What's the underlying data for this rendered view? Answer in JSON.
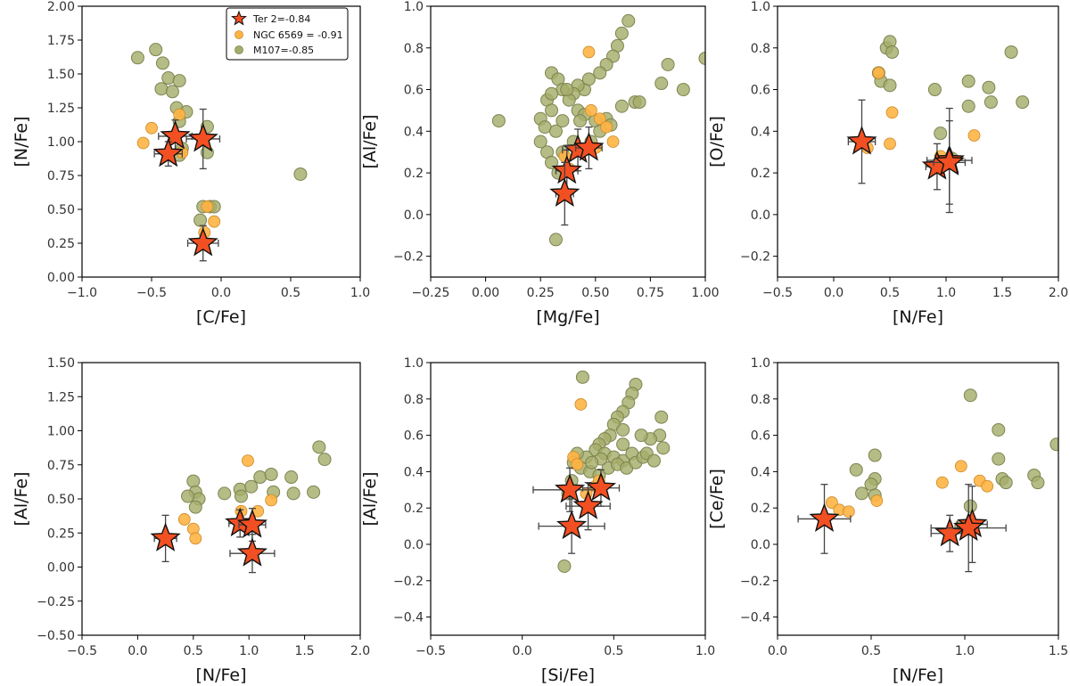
{
  "legend": {
    "ter2": "Ter 2=-0.84",
    "ngc6569": "NGC 6569 = -0.91",
    "m107": "M107=-0.85"
  },
  "colors": {
    "ter2_fill": "#f25022",
    "ter2_edge": "#111111",
    "ngc6569_fill": "#ffb444",
    "ngc6569_edge": "#c98a2a",
    "m107_fill": "#a6ad6a",
    "m107_edge": "#7d8450",
    "errorbar": "#444444"
  },
  "chart_data": [
    {
      "type": "scatter",
      "xlabel": "[C/Fe]",
      "ylabel": "[N/Fe]",
      "xlim": [
        -1.0,
        1.0
      ],
      "ylim": [
        0.0,
        2.0
      ],
      "xticks": [
        "−1.0",
        "−0.5",
        "0.0",
        "0.5",
        "1.0"
      ],
      "xtick_values": [
        -1.0,
        -0.5,
        0.0,
        0.5,
        1.0
      ],
      "yticks": [
        "0.00",
        "0.25",
        "0.50",
        "0.75",
        "1.00",
        "1.25",
        "1.50",
        "1.75",
        "2.00"
      ],
      "ytick_values": [
        0,
        0.25,
        0.5,
        0.75,
        1.0,
        1.25,
        1.5,
        1.75,
        2.0
      ],
      "legend": true,
      "m107": [
        [
          -0.6,
          1.62
        ],
        [
          -0.47,
          1.68
        ],
        [
          -0.42,
          1.58
        ],
        [
          -0.38,
          1.47
        ],
        [
          -0.3,
          1.45
        ],
        [
          -0.43,
          1.39
        ],
        [
          -0.35,
          1.37
        ],
        [
          -0.32,
          1.25
        ],
        [
          -0.25,
          1.22
        ],
        [
          -0.3,
          1.15
        ],
        [
          -0.1,
          1.11
        ],
        [
          -0.28,
          0.95
        ],
        [
          -0.3,
          0.9
        ],
        [
          -0.1,
          0.92
        ],
        [
          -0.15,
          0.42
        ],
        [
          -0.13,
          0.52
        ],
        [
          -0.08,
          0.52
        ],
        [
          -0.05,
          0.52
        ],
        [
          0.57,
          0.76
        ]
      ],
      "ngc6569": [
        [
          -0.56,
          0.99
        ],
        [
          -0.5,
          1.1
        ],
        [
          -0.3,
          1.2
        ],
        [
          -0.28,
          0.92
        ],
        [
          -0.12,
          0.33
        ],
        [
          -0.05,
          0.41
        ],
        [
          -0.1,
          0.52
        ]
      ],
      "ter2": [
        {
          "x": -0.33,
          "y": 1.04,
          "xerr": 0.12,
          "yerr": 0.12
        },
        {
          "x": -0.13,
          "y": 1.02,
          "xerr": 0.12,
          "yerr": 0.22
        },
        {
          "x": -0.38,
          "y": 0.91,
          "xerr": 0.1,
          "yerr": 0.09
        },
        {
          "x": -0.13,
          "y": 0.25,
          "xerr": 0.11,
          "yerr": 0.13
        }
      ]
    },
    {
      "type": "scatter",
      "xlabel": "[Mg/Fe]",
      "ylabel": "[Al/Fe]",
      "xlim": [
        -0.25,
        1.0
      ],
      "ylim": [
        -0.3,
        1.0
      ],
      "xticks": [
        "−0.25",
        "0.00",
        "0.25",
        "0.50",
        "0.75",
        "1.00"
      ],
      "xtick_values": [
        -0.25,
        0.0,
        0.25,
        0.5,
        0.75,
        1.0
      ],
      "yticks": [
        "−0.2",
        "0.0",
        "0.2",
        "0.4",
        "0.6",
        "0.8",
        "1.0"
      ],
      "ytick_values": [
        -0.2,
        0.0,
        0.2,
        0.4,
        0.6,
        0.8,
        1.0
      ],
      "legend": false,
      "m107": [
        [
          0.06,
          0.45
        ],
        [
          0.65,
          0.93
        ],
        [
          0.62,
          0.87
        ],
        [
          0.6,
          0.81
        ],
        [
          0.58,
          0.76
        ],
        [
          0.55,
          0.72
        ],
        [
          0.52,
          0.68
        ],
        [
          0.45,
          0.6
        ],
        [
          0.47,
          0.65
        ],
        [
          0.42,
          0.62
        ],
        [
          0.4,
          0.58
        ],
        [
          0.3,
          0.68
        ],
        [
          0.33,
          0.65
        ],
        [
          0.35,
          0.6
        ],
        [
          0.28,
          0.55
        ],
        [
          0.3,
          0.5
        ],
        [
          0.25,
          0.46
        ],
        [
          0.27,
          0.42
        ],
        [
          0.25,
          0.35
        ],
        [
          0.28,
          0.3
        ],
        [
          0.3,
          0.25
        ],
        [
          0.32,
          0.4
        ],
        [
          0.35,
          0.45
        ],
        [
          0.38,
          0.55
        ],
        [
          0.42,
          0.5
        ],
        [
          0.45,
          0.48
        ],
        [
          0.5,
          0.45
        ],
        [
          0.55,
          0.46
        ],
        [
          0.52,
          0.4
        ],
        [
          0.48,
          0.35
        ],
        [
          0.35,
          0.3
        ],
        [
          0.33,
          0.2
        ],
        [
          0.32,
          -0.12
        ],
        [
          0.68,
          0.54
        ],
        [
          0.7,
          0.54
        ],
        [
          0.8,
          0.63
        ],
        [
          0.83,
          0.72
        ],
        [
          0.9,
          0.6
        ],
        [
          1.0,
          0.75
        ],
        [
          0.57,
          0.43
        ],
        [
          0.62,
          0.52
        ],
        [
          0.4,
          0.35
        ],
        [
          0.43,
          0.45
        ],
        [
          0.37,
          0.6
        ],
        [
          0.3,
          0.58
        ]
      ],
      "ngc6569": [
        [
          0.47,
          0.78
        ],
        [
          0.48,
          0.5
        ],
        [
          0.52,
          0.46
        ],
        [
          0.55,
          0.42
        ],
        [
          0.58,
          0.35
        ],
        [
          0.5,
          0.32
        ],
        [
          0.36,
          0.28
        ],
        [
          0.38,
          0.22
        ],
        [
          0.36,
          0.1
        ]
      ],
      "ter2": [
        {
          "x": 0.42,
          "y": 0.31,
          "xerr": 0.07,
          "yerr": 0.1
        },
        {
          "x": 0.47,
          "y": 0.32,
          "xerr": 0.06,
          "yerr": 0.1
        },
        {
          "x": 0.37,
          "y": 0.21,
          "xerr": 0.05,
          "yerr": 0.12
        },
        {
          "x": 0.36,
          "y": 0.1,
          "xerr": 0.04,
          "yerr": 0.15
        }
      ]
    },
    {
      "type": "scatter",
      "xlabel": "[N/Fe]",
      "ylabel": "[O/Fe]",
      "xlim": [
        -0.5,
        2.0
      ],
      "ylim": [
        -0.3,
        1.0
      ],
      "xticks": [
        "−0.5",
        "0.0",
        "0.5",
        "1.0",
        "1.5",
        "2.0"
      ],
      "xtick_values": [
        -0.5,
        0.0,
        0.5,
        1.0,
        1.5,
        2.0
      ],
      "yticks": [
        "−0.2",
        "0.0",
        "0.2",
        "0.4",
        "0.6",
        "0.8",
        "1.0"
      ],
      "ytick_values": [
        -0.2,
        0.0,
        0.2,
        0.4,
        0.6,
        0.8,
        1.0
      ],
      "legend": false,
      "m107": [
        [
          0.47,
          0.8
        ],
        [
          0.5,
          0.83
        ],
        [
          0.52,
          0.78
        ],
        [
          0.4,
          0.68
        ],
        [
          0.42,
          0.64
        ],
        [
          0.5,
          0.62
        ],
        [
          0.9,
          0.6
        ],
        [
          0.95,
          0.39
        ],
        [
          1.2,
          0.64
        ],
        [
          1.2,
          0.52
        ],
        [
          1.38,
          0.61
        ],
        [
          1.4,
          0.54
        ],
        [
          1.58,
          0.78
        ],
        [
          1.68,
          0.54
        ],
        [
          1.05,
          0.27
        ]
      ],
      "ngc6569": [
        [
          0.4,
          0.68
        ],
        [
          0.52,
          0.49
        ],
        [
          0.5,
          0.34
        ],
        [
          0.3,
          0.32
        ],
        [
          1.25,
          0.38
        ],
        [
          0.95,
          0.28
        ]
      ],
      "ter2": [
        {
          "x": 0.25,
          "y": 0.35,
          "xerr": 0.12,
          "yerr": 0.2
        },
        {
          "x": 1.03,
          "y": 0.26,
          "xerr": 0.2,
          "yerr": 0.25
        },
        {
          "x": 0.92,
          "y": 0.23,
          "xerr": 0.1,
          "yerr": 0.11
        },
        {
          "x": 1.03,
          "y": 0.25,
          "xerr": 0.14,
          "yerr": 0.2
        }
      ]
    },
    {
      "type": "scatter",
      "xlabel": "[N/Fe]",
      "ylabel": "[Al/Fe]",
      "xlim": [
        -0.5,
        2.0
      ],
      "ylim": [
        -0.5,
        1.5
      ],
      "xticks": [
        "−0.5",
        "0.0",
        "0.5",
        "1.0",
        "1.5",
        "2.0"
      ],
      "xtick_values": [
        -0.5,
        0.0,
        0.5,
        1.0,
        1.5,
        2.0
      ],
      "yticks": [
        "−0.50",
        "−0.25",
        "0.00",
        "0.25",
        "0.50",
        "0.75",
        "1.00",
        "1.25",
        "1.50"
      ],
      "ytick_values": [
        -0.5,
        -0.25,
        0.0,
        0.25,
        0.5,
        0.75,
        1.0,
        1.25,
        1.5
      ],
      "legend": false,
      "m107": [
        [
          0.5,
          0.63
        ],
        [
          0.52,
          0.55
        ],
        [
          0.55,
          0.5
        ],
        [
          0.45,
          0.52
        ],
        [
          0.52,
          0.44
        ],
        [
          0.78,
          0.54
        ],
        [
          0.92,
          0.57
        ],
        [
          0.93,
          0.52
        ],
        [
          1.02,
          0.59
        ],
        [
          1.1,
          0.66
        ],
        [
          1.2,
          0.68
        ],
        [
          1.22,
          0.55
        ],
        [
          1.38,
          0.66
        ],
        [
          1.4,
          0.54
        ],
        [
          1.58,
          0.55
        ],
        [
          1.63,
          0.88
        ],
        [
          1.68,
          0.79
        ]
      ],
      "ngc6569": [
        [
          0.99,
          0.78
        ],
        [
          0.42,
          0.35
        ],
        [
          0.5,
          0.28
        ],
        [
          0.52,
          0.21
        ],
        [
          1.2,
          0.49
        ],
        [
          0.93,
          0.41
        ],
        [
          1.08,
          0.41
        ]
      ],
      "ter2": [
        {
          "x": 0.25,
          "y": 0.21,
          "xerr": 0.1,
          "yerr": 0.17
        },
        {
          "x": 0.92,
          "y": 0.32,
          "xerr": 0.1,
          "yerr": 0.1
        },
        {
          "x": 1.03,
          "y": 0.31,
          "xerr": 0.12,
          "yerr": 0.12
        },
        {
          "x": 1.03,
          "y": 0.1,
          "xerr": 0.2,
          "yerr": 0.14
        }
      ]
    },
    {
      "type": "scatter",
      "xlabel": "[Si/Fe]",
      "ylabel": "[Al/Fe]",
      "xlim": [
        -0.5,
        1.0
      ],
      "ylim": [
        -0.5,
        1.0
      ],
      "xticks": [
        "−0.5",
        "0.0",
        "0.5",
        "1.0"
      ],
      "xtick_values": [
        -0.5,
        0.0,
        0.5,
        1.0
      ],
      "yticks": [
        "−0.4",
        "−0.2",
        "0.0",
        "0.2",
        "0.4",
        "0.6",
        "0.8",
        "1.0"
      ],
      "ytick_values": [
        -0.4,
        -0.2,
        0.0,
        0.2,
        0.4,
        0.6,
        0.8,
        1.0
      ],
      "legend": false,
      "m107": [
        [
          0.33,
          0.92
        ],
        [
          0.62,
          0.88
        ],
        [
          0.6,
          0.83
        ],
        [
          0.58,
          0.78
        ],
        [
          0.55,
          0.73
        ],
        [
          0.52,
          0.7
        ],
        [
          0.5,
          0.66
        ],
        [
          0.55,
          0.63
        ],
        [
          0.48,
          0.6
        ],
        [
          0.45,
          0.58
        ],
        [
          0.42,
          0.55
        ],
        [
          0.4,
          0.52
        ],
        [
          0.45,
          0.5
        ],
        [
          0.5,
          0.48
        ],
        [
          0.55,
          0.46
        ],
        [
          0.6,
          0.5
        ],
        [
          0.35,
          0.48
        ],
        [
          0.3,
          0.5
        ],
        [
          0.28,
          0.45
        ],
        [
          0.32,
          0.42
        ],
        [
          0.37,
          0.4
        ],
        [
          0.42,
          0.38
        ],
        [
          0.47,
          0.42
        ],
        [
          0.52,
          0.44
        ],
        [
          0.57,
          0.42
        ],
        [
          0.62,
          0.45
        ],
        [
          0.66,
          0.48
        ],
        [
          0.76,
          0.7
        ],
        [
          0.75,
          0.6
        ],
        [
          0.77,
          0.53
        ],
        [
          0.7,
          0.58
        ],
        [
          0.68,
          0.5
        ],
        [
          0.72,
          0.46
        ],
        [
          0.25,
          0.28
        ],
        [
          0.27,
          0.35
        ],
        [
          0.23,
          -0.12
        ],
        [
          0.55,
          0.55
        ],
        [
          0.65,
          0.6
        ],
        [
          0.43,
          0.47
        ],
        [
          0.38,
          0.45
        ]
      ],
      "ngc6569": [
        [
          0.32,
          0.77
        ],
        [
          0.28,
          0.48
        ],
        [
          0.3,
          0.44
        ],
        [
          0.35,
          0.28
        ],
        [
          0.4,
          0.32
        ],
        [
          0.42,
          0.35
        ]
      ],
      "ter2": [
        {
          "x": 0.26,
          "y": 0.3,
          "xerr": 0.2,
          "yerr": 0.12
        },
        {
          "x": 0.43,
          "y": 0.31,
          "xerr": 0.1,
          "yerr": 0.1
        },
        {
          "x": 0.36,
          "y": 0.21,
          "xerr": 0.12,
          "yerr": 0.13
        },
        {
          "x": 0.27,
          "y": 0.1,
          "xerr": 0.18,
          "yerr": 0.15
        }
      ]
    },
    {
      "type": "scatter",
      "xlabel": "[N/Fe]",
      "ylabel": "[Ce/Fe]",
      "xlim": [
        0.0,
        1.5
      ],
      "ylim": [
        -0.5,
        1.0
      ],
      "xticks": [
        "0.0",
        "0.5",
        "1.0",
        "1.5"
      ],
      "xtick_values": [
        0.0,
        0.5,
        1.0,
        1.5
      ],
      "yticks": [
        "−0.4",
        "−0.2",
        "0.0",
        "0.2",
        "0.4",
        "0.6",
        "0.8",
        "1.0"
      ],
      "ytick_values": [
        -0.4,
        -0.2,
        0.0,
        0.2,
        0.4,
        0.6,
        0.8,
        1.0
      ],
      "legend": false,
      "m107": [
        [
          1.03,
          0.82
        ],
        [
          1.18,
          0.63
        ],
        [
          1.18,
          0.47
        ],
        [
          1.2,
          0.36
        ],
        [
          1.22,
          0.34
        ],
        [
          1.37,
          0.38
        ],
        [
          1.39,
          0.34
        ],
        [
          1.49,
          0.55
        ],
        [
          0.52,
          0.49
        ],
        [
          0.52,
          0.36
        ],
        [
          0.5,
          0.33
        ],
        [
          0.42,
          0.41
        ],
        [
          0.45,
          0.28
        ],
        [
          0.52,
          0.27
        ],
        [
          1.03,
          0.21
        ],
        [
          0.98,
          0.1
        ]
      ],
      "ngc6569": [
        [
          0.98,
          0.43
        ],
        [
          0.88,
          0.34
        ],
        [
          1.08,
          0.35
        ],
        [
          1.12,
          0.32
        ],
        [
          0.29,
          0.23
        ],
        [
          0.33,
          0.19
        ],
        [
          0.38,
          0.18
        ],
        [
          0.53,
          0.24
        ]
      ],
      "ter2": [
        {
          "x": 0.25,
          "y": 0.14,
          "xerr": 0.14,
          "yerr": 0.19
        },
        {
          "x": 1.04,
          "y": 0.11,
          "xerr": 0.08,
          "yerr": 0.21
        },
        {
          "x": 0.92,
          "y": 0.06,
          "xerr": 0.1,
          "yerr": 0.1
        },
        {
          "x": 1.02,
          "y": 0.09,
          "xerr": 0.2,
          "yerr": 0.24
        }
      ]
    }
  ]
}
